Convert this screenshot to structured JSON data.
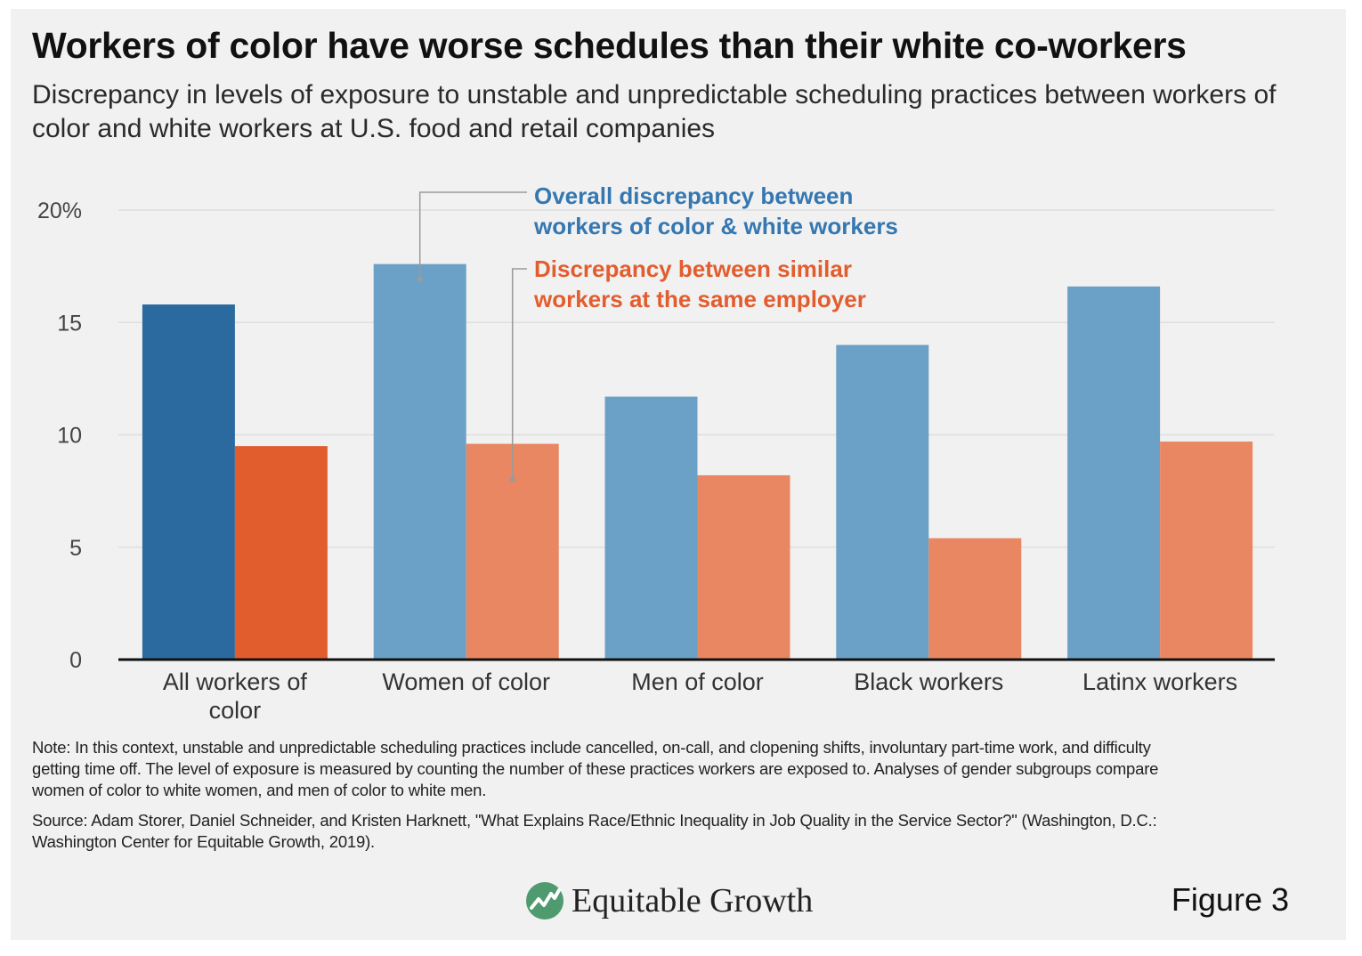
{
  "title": "Workers of color have worse schedules than their white co-workers",
  "subtitle": "Discrepancy in levels of exposure to unstable and unpredictable scheduling practices between workers of color and white workers at U.S. food and retail companies",
  "chart_data": {
    "type": "bar",
    "categories": [
      [
        "All workers of",
        "color"
      ],
      [
        "Women of color"
      ],
      [
        "Men of color"
      ],
      [
        "Black workers"
      ],
      [
        "Latinx workers"
      ]
    ],
    "series": [
      {
        "name": "Overall discrepancy between workers of color & white workers",
        "values": [
          15.8,
          17.6,
          11.7,
          14.0,
          16.6
        ]
      },
      {
        "name": "Discrepancy between similar workers at the same employer",
        "values": [
          9.5,
          9.6,
          8.2,
          5.4,
          9.7
        ]
      }
    ],
    "yticks": [
      "0",
      "5",
      "10",
      "15",
      "20%"
    ],
    "ylim": [
      0,
      20
    ],
    "legend_lines": [
      [
        "Overall discrepancy between",
        "workers of color & white workers"
      ],
      [
        "Discrepancy between similar",
        "workers at the same employer"
      ]
    ],
    "colors": {
      "series1_highlight": "#2b6a9e",
      "series1": "#6ba1c6",
      "series2_highlight": "#e25d2e",
      "series2": "#e98763",
      "legend1_text": "#3577b1",
      "legend2_text": "#e25d2e",
      "axis": "#111111",
      "grid": "#dedede"
    }
  },
  "note": "Note: In this context, unstable and unpredictable scheduling practices include cancelled, on-call, and clopening shifts, involuntary part-time work, and difficulty getting time off. The level of exposure is measured by counting the number of these practices workers are exposed to. Analyses of gender subgroups compare women of color to white women, and men of color to white men.",
  "source": "Source: Adam Storer, Daniel Schneider, and Kristen Harknett, \"What Explains Race/Ethnic Inequality in Job Quality in the Service Sector?\" (Washington, D.C.: Washington Center for Equitable Growth, 2019).",
  "brand": {
    "name": "Equitable Growth",
    "logo_icon": "equitable-growth-logo-icon",
    "logo_color": "#4f9a6e"
  },
  "figure_label": "Figure 3"
}
